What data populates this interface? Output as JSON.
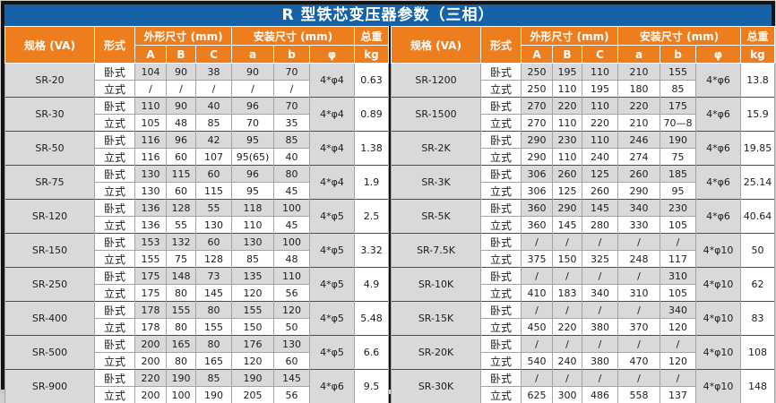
{
  "title": "R 型铁芯变压器参数（三相）",
  "columns": {
    "spec": "规格 (VA)",
    "form": "形式",
    "outer_dim_group": "外形尺寸 (mm)",
    "mount_dim_group": "安装尺寸 (mm)",
    "weight_group": "总重",
    "sub_headers": [
      "A",
      "B",
      "C",
      "a",
      "b",
      "φ",
      "kg"
    ]
  },
  "form_labels": {
    "horizontal": "卧式",
    "vertical": "立式"
  },
  "colors": {
    "title_bg": "#1562a8",
    "header_bg": "#ee7d1d",
    "header_text": "#ffffff",
    "shade": "#d9d9db",
    "frame": "#141414",
    "grid": "#a3a3a3",
    "group_line": "#4d4d4d",
    "text": "#1c1c1c"
  },
  "left_table": {
    "rows": [
      {
        "spec": "SR-20",
        "horizontal": [
          "104",
          "90",
          "38",
          "90",
          "70"
        ],
        "vertical": [
          "/",
          "/",
          "/",
          "/",
          "/"
        ],
        "phi": "4*φ4",
        "kg": "0.63"
      },
      {
        "spec": "SR-30",
        "horizontal": [
          "110",
          "90",
          "40",
          "96",
          "70"
        ],
        "vertical": [
          "105",
          "48",
          "85",
          "70",
          "35"
        ],
        "phi": "4*φ4",
        "kg": "0.89"
      },
      {
        "spec": "SR-50",
        "horizontal": [
          "116",
          "96",
          "42",
          "95",
          "85"
        ],
        "vertical": [
          "116",
          "60",
          "107",
          "95(65)",
          "40"
        ],
        "phi": "4*φ4",
        "kg": "1.38"
      },
      {
        "spec": "SR-75",
        "horizontal": [
          "130",
          "115",
          "60",
          "96",
          "80"
        ],
        "vertical": [
          "130",
          "60",
          "115",
          "95",
          "45"
        ],
        "phi": "4*φ4",
        "kg": "1.9"
      },
      {
        "spec": "SR-120",
        "horizontal": [
          "136",
          "128",
          "55",
          "118",
          "100"
        ],
        "vertical": [
          "136",
          "55",
          "130",
          "110",
          "45"
        ],
        "phi": "4*φ5",
        "kg": "2.5"
      },
      {
        "spec": "SR-150",
        "horizontal": [
          "153",
          "132",
          "60",
          "130",
          "100"
        ],
        "vertical": [
          "155",
          "75",
          "128",
          "85",
          "48"
        ],
        "phi": "4*φ5",
        "kg": "3.32"
      },
      {
        "spec": "SR-250",
        "horizontal": [
          "175",
          "148",
          "73",
          "135",
          "110"
        ],
        "vertical": [
          "175",
          "80",
          "145",
          "120",
          "56"
        ],
        "phi": "4*φ5",
        "kg": "4.9"
      },
      {
        "spec": "SR-400",
        "horizontal": [
          "178",
          "155",
          "80",
          "155",
          "120"
        ],
        "vertical": [
          "178",
          "80",
          "155",
          "150",
          "50"
        ],
        "phi": "4*φ5",
        "kg": "5.48"
      },
      {
        "spec": "SR-500",
        "horizontal": [
          "200",
          "165",
          "80",
          "176",
          "130"
        ],
        "vertical": [
          "200",
          "80",
          "165",
          "120",
          "60"
        ],
        "phi": "4*φ5",
        "kg": "6.6"
      },
      {
        "spec": "SR-900",
        "horizontal": [
          "220",
          "190",
          "85",
          "190",
          "145"
        ],
        "vertical": [
          "200",
          "100",
          "190",
          "205",
          "56"
        ],
        "phi": "4*φ6",
        "kg": "9.5"
      }
    ]
  },
  "right_table": {
    "rows": [
      {
        "spec": "SR-1200",
        "horizontal": [
          "250",
          "195",
          "110",
          "210",
          "155"
        ],
        "vertical": [
          "250",
          "110",
          "195",
          "180",
          "85"
        ],
        "phi": "4*φ6",
        "kg": "13.8"
      },
      {
        "spec": "SR-1500",
        "horizontal": [
          "270",
          "220",
          "110",
          "220",
          "175"
        ],
        "vertical": [
          "270",
          "110",
          "220",
          "210",
          "70—8"
        ],
        "phi": "4*φ6",
        "kg": "15.9"
      },
      {
        "spec": "SR-2K",
        "horizontal": [
          "290",
          "230",
          "110",
          "246",
          "190"
        ],
        "vertical": [
          "290",
          "110",
          "240",
          "274",
          "75"
        ],
        "phi": "4*φ6",
        "kg": "19.85"
      },
      {
        "spec": "SR-3K",
        "horizontal": [
          "306",
          "260",
          "125",
          "260",
          "185"
        ],
        "vertical": [
          "306",
          "125",
          "260",
          "290",
          "95"
        ],
        "phi": "4*φ6",
        "kg": "25.14"
      },
      {
        "spec": "SR-5K",
        "horizontal": [
          "360",
          "290",
          "145",
          "340",
          "230"
        ],
        "vertical": [
          "360",
          "145",
          "280",
          "330",
          "105"
        ],
        "phi": "4*φ6",
        "kg": "40.64"
      },
      {
        "spec": "SR-7.5K",
        "horizontal": [
          "/",
          "/",
          "/",
          "/",
          "/"
        ],
        "vertical": [
          "375",
          "150",
          "325",
          "248",
          "117"
        ],
        "phi": "4*φ10",
        "kg": "50"
      },
      {
        "spec": "SR-10K",
        "horizontal": [
          "/",
          "/",
          "/",
          "/",
          "310"
        ],
        "vertical": [
          "410",
          "183",
          "340",
          "310",
          "105"
        ],
        "phi": "4*φ10",
        "kg": "62"
      },
      {
        "spec": "SR-15K",
        "horizontal": [
          "/",
          "/",
          "/",
          "/",
          "340"
        ],
        "vertical": [
          "450",
          "220",
          "380",
          "370",
          "120"
        ],
        "phi": "4*φ10",
        "kg": "83"
      },
      {
        "spec": "SR-20K",
        "horizontal": [
          "/",
          "/",
          "/",
          "/",
          "/"
        ],
        "vertical": [
          "540",
          "240",
          "380",
          "470",
          "120"
        ],
        "phi": "4*φ10",
        "kg": "108"
      },
      {
        "spec": "SR-30K",
        "horizontal": [
          "/",
          "/",
          "/",
          "/",
          "/"
        ],
        "vertical": [
          "625",
          "300",
          "486",
          "558",
          "137"
        ],
        "phi": "4*φ10",
        "kg": "148"
      }
    ]
  }
}
